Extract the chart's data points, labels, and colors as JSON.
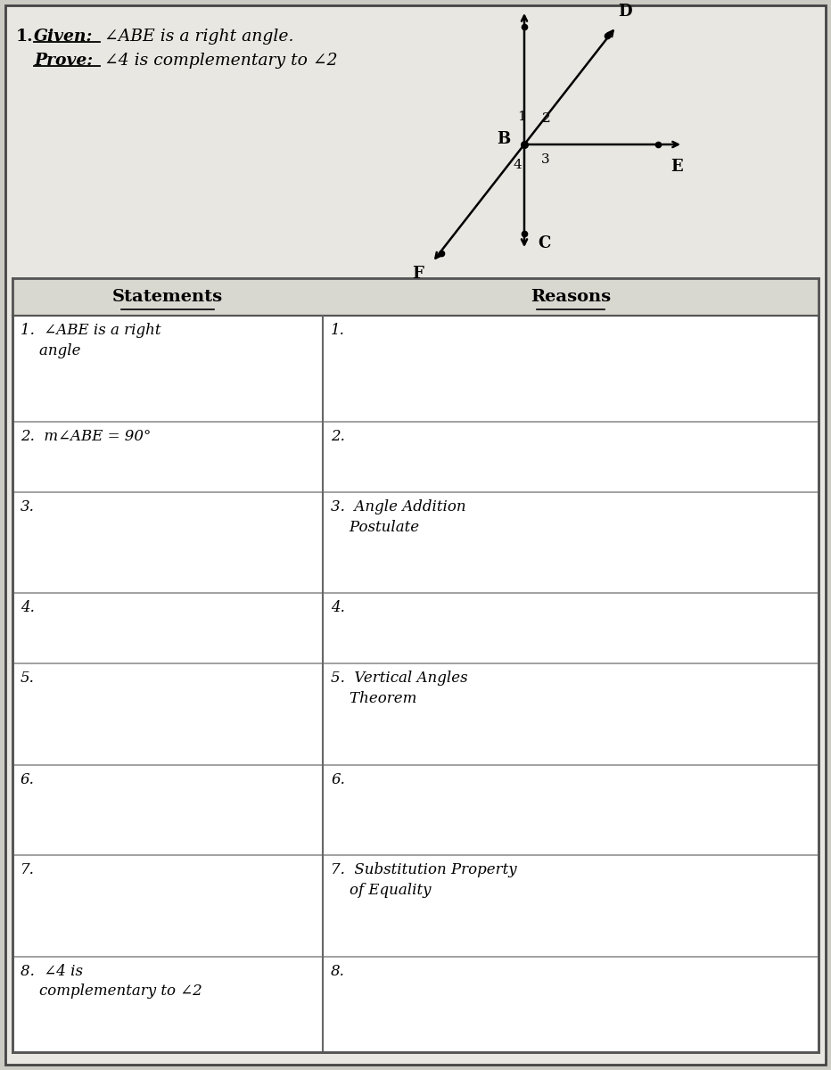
{
  "bg_color": "#cccbc4",
  "inner_bg": "#e8e7e2",
  "statements": [
    "1.  ∠ABE is a right\n    angle",
    "2.  m∠ABE = 90°",
    "3.",
    "4.",
    "5.",
    "6.",
    "7.",
    "8.  ∠4 is\n    complementary to ∠2"
  ],
  "reasons": [
    "1.",
    "2.",
    "3.  Angle Addition\n    Postulate",
    "4.",
    "5.  Vertical Angles\n    Theorem",
    "6.",
    "7.  Substitution Property\n    of Equality",
    "8."
  ],
  "row_heights": [
    2.1,
    1.4,
    2.0,
    1.4,
    2.0,
    1.8,
    2.0,
    1.9
  ]
}
